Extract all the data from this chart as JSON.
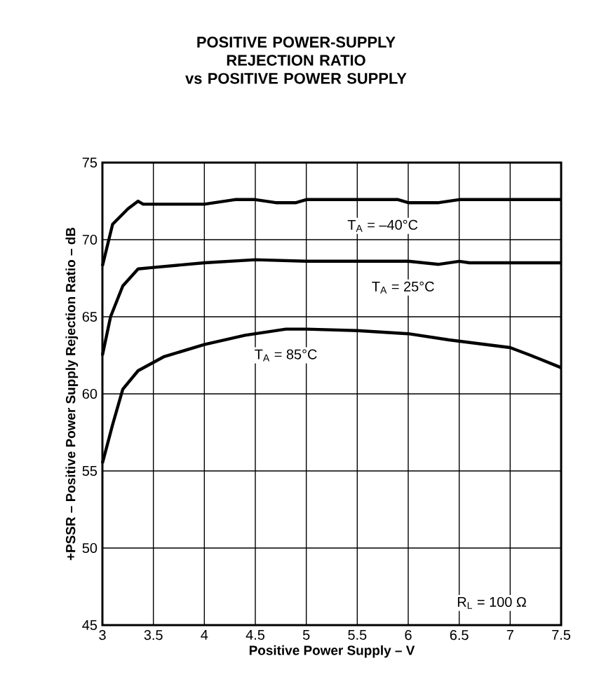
{
  "chart_data": {
    "type": "line",
    "title": "POSITIVE POWER-SUPPLY REJECTION RATIO",
    "subtitle": "vs POSITIVE POWER SUPPLY",
    "xlabel": "Positive Power Supply – V",
    "ylabel": "+PSSR – Positive Power Supply Rejection Ratio – dB",
    "xlim": [
      3,
      7.5
    ],
    "ylim": [
      45,
      75
    ],
    "xticks": [
      3,
      3.5,
      4,
      4.5,
      5,
      5.5,
      6,
      6.5,
      7,
      7.5
    ],
    "yticks": [
      45,
      50,
      55,
      60,
      65,
      70,
      75
    ],
    "grid": true,
    "marker": "none",
    "line_style": "solid",
    "annotations": [
      "R$_{L}$ = 100 Ω"
    ],
    "series": [
      {
        "name": "T$_{A}$ = –40°C",
        "color": "#000000",
        "x": [
          3.0,
          3.1,
          3.25,
          3.35,
          3.4,
          4.0,
          4.3,
          4.5,
          4.7,
          4.9,
          5.0,
          5.9,
          6.0,
          6.3,
          6.5,
          7.5
        ],
        "values": [
          68.3,
          71,
          72,
          72.5,
          72.3,
          72.3,
          72.6,
          72.6,
          72.4,
          72.4,
          72.6,
          72.6,
          72.4,
          72.4,
          72.6,
          72.6
        ]
      },
      {
        "name": "T$_{A}$ = 25°C",
        "color": "#000000",
        "x": [
          3.0,
          3.08,
          3.2,
          3.35,
          3.5,
          4.0,
          4.5,
          5.0,
          6.0,
          6.3,
          6.5,
          6.6,
          7.5
        ],
        "values": [
          62.5,
          65,
          67,
          68.1,
          68.2,
          68.5,
          68.7,
          68.6,
          68.6,
          68.4,
          68.6,
          68.5,
          68.5
        ]
      },
      {
        "name": "T$_{A}$ = 85°C",
        "color": "#000000",
        "x": [
          3.0,
          3.1,
          3.2,
          3.35,
          3.6,
          4.0,
          4.4,
          4.8,
          5.0,
          5.5,
          6.0,
          6.4,
          7.0,
          7.2,
          7.5
        ],
        "values": [
          55.5,
          58,
          60.3,
          61.5,
          62.4,
          63.2,
          63.8,
          64.2,
          64.2,
          64.1,
          63.9,
          63.5,
          63.0,
          62.5,
          61.7
        ]
      }
    ]
  }
}
